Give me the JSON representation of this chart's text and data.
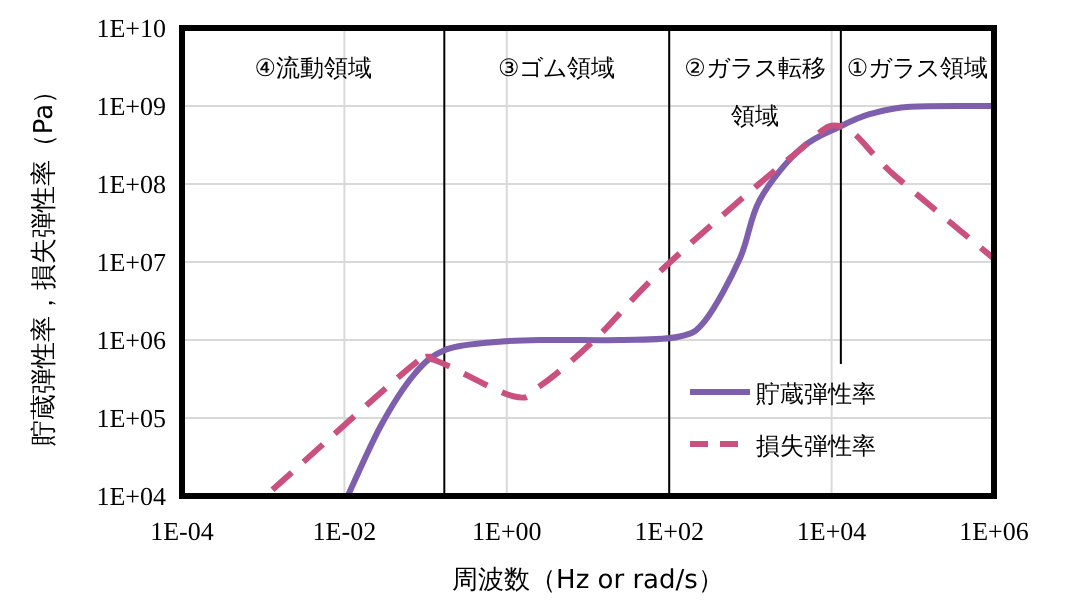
{
  "chart_data": {
    "type": "line",
    "xlabel": "周波数（Hz or rad/s）",
    "ylabel": "貯蔵弾性率，損失弾性率（Pa）",
    "log": "xy",
    "xlim": [
      0.0001,
      1000000
    ],
    "ylim": [
      10000,
      10000000000
    ],
    "xticks": [
      {
        "value": 0.0001,
        "label": "1E-04"
      },
      {
        "value": 0.01,
        "label": "1E-02"
      },
      {
        "value": 1,
        "label": "1E+00"
      },
      {
        "value": 100,
        "label": "1E+02"
      },
      {
        "value": 10000,
        "label": "1E+04"
      },
      {
        "value": 1000000,
        "label": "1E+06"
      }
    ],
    "yticks": [
      {
        "value": 10000,
        "label": "1E+04"
      },
      {
        "value": 100000,
        "label": "1E+05"
      },
      {
        "value": 1000000,
        "label": "1E+06"
      },
      {
        "value": 10000000,
        "label": "1E+07"
      },
      {
        "value": 100000000,
        "label": "1E+08"
      },
      {
        "value": 1000000000,
        "label": "1E+09"
      },
      {
        "value": 10000000000,
        "label": "1E+10"
      }
    ],
    "grid": true,
    "legend": "bottom right",
    "series": [
      {
        "name": "貯蔵弾性率",
        "color": "#7e5fae",
        "line_style": "solid",
        "x": [
          0.011,
          0.028,
          0.072,
          0.17,
          0.62,
          2.6,
          25,
          130,
          280,
          740,
          1300,
          4100,
          13000,
          30000,
          93000,
          1000000
        ],
        "values": [
          10000,
          79000,
          360000,
          740000,
          930000,
          1000000,
          1000000,
          1100000,
          1800000,
          11000000,
          62000000,
          280000000,
          550000000,
          790000000,
          980000000,
          1000000000
        ]
      },
      {
        "name": "損失弾性率",
        "color": "#c9507f",
        "line_style": "dashed",
        "x": [
          0.0013,
          0.072,
          0.13,
          1.2,
          2.6,
          12,
          91,
          3500,
          13000,
          59000,
          1000000
        ],
        "values": [
          12000,
          490000,
          550000,
          190000,
          260000,
          1000000,
          8900000,
          240000000,
          550000000,
          130000000,
          11000000
        ]
      }
    ],
    "ref_lines": [
      {
        "axis": "x",
        "value": 0.17,
        "color": "#000000"
      },
      {
        "axis": "x",
        "value": 100,
        "color": "#000000"
      },
      {
        "axis": "x",
        "value": 13000,
        "color": "#000000"
      }
    ],
    "annotations": [
      "④流動領域",
      "③ゴム領域",
      "②ガラス転移領域",
      "①ガラス領域"
    ]
  }
}
